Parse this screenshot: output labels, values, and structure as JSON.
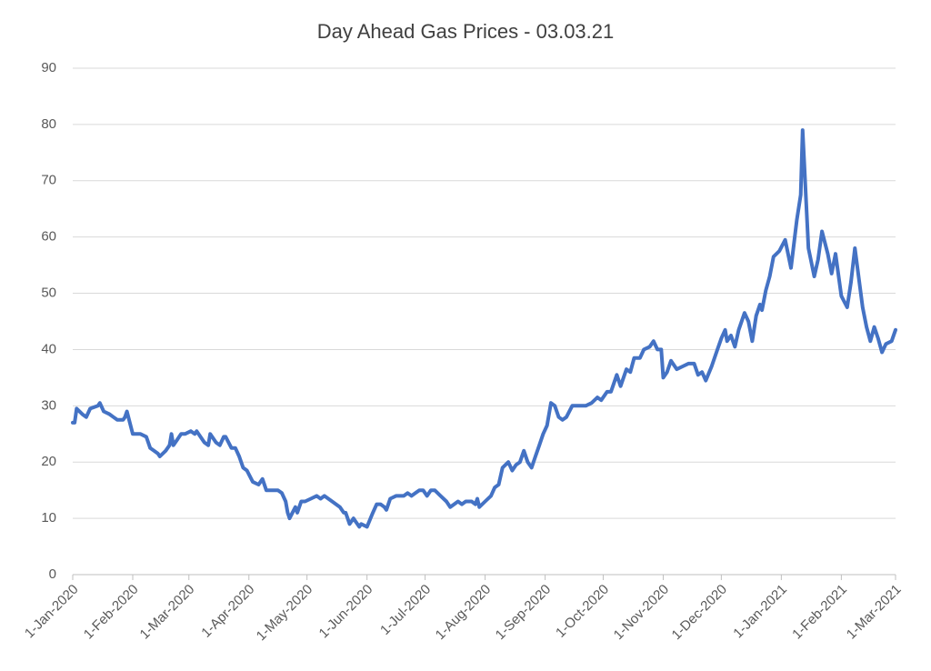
{
  "chart_data": {
    "type": "line",
    "title": "Day Ahead Gas Prices - 03.03.21",
    "x": [
      "2020-01-01",
      "2020-01-02",
      "2020-01-03",
      "2020-01-06",
      "2020-01-08",
      "2020-01-10",
      "2020-01-14",
      "2020-01-15",
      "2020-01-17",
      "2020-01-20",
      "2020-01-22",
      "2020-01-24",
      "2020-01-27",
      "2020-01-28",
      "2020-01-29",
      "2020-02-01",
      "2020-02-03",
      "2020-02-05",
      "2020-02-08",
      "2020-02-10",
      "2020-02-12",
      "2020-02-14",
      "2020-02-15",
      "2020-02-18",
      "2020-02-20",
      "2020-02-21",
      "2020-02-22",
      "2020-02-24",
      "2020-02-26",
      "2020-02-28",
      "2020-03-02",
      "2020-03-04",
      "2020-03-05",
      "2020-03-09",
      "2020-03-11",
      "2020-03-12",
      "2020-03-15",
      "2020-03-17",
      "2020-03-19",
      "2020-03-20",
      "2020-03-23",
      "2020-03-25",
      "2020-03-27",
      "2020-03-29",
      "2020-03-31",
      "2020-04-03",
      "2020-04-06",
      "2020-04-08",
      "2020-04-10",
      "2020-04-14",
      "2020-04-16",
      "2020-04-18",
      "2020-04-20",
      "2020-04-21",
      "2020-04-22",
      "2020-04-25",
      "2020-04-26",
      "2020-04-28",
      "2020-04-30",
      "2020-05-03",
      "2020-05-06",
      "2020-05-08",
      "2020-05-10",
      "2020-05-12",
      "2020-05-14",
      "2020-05-16",
      "2020-05-18",
      "2020-05-20",
      "2020-05-21",
      "2020-05-23",
      "2020-05-25",
      "2020-05-26",
      "2020-05-28",
      "2020-05-29",
      "2020-06-01",
      "2020-06-04",
      "2020-06-06",
      "2020-06-08",
      "2020-06-10",
      "2020-06-11",
      "2020-06-13",
      "2020-06-16",
      "2020-06-18",
      "2020-06-20",
      "2020-06-22",
      "2020-06-24",
      "2020-06-26",
      "2020-06-28",
      "2020-06-30",
      "2020-07-02",
      "2020-07-04",
      "2020-07-06",
      "2020-07-09",
      "2020-07-12",
      "2020-07-14",
      "2020-07-16",
      "2020-07-18",
      "2020-07-20",
      "2020-07-22",
      "2020-07-25",
      "2020-07-27",
      "2020-07-28",
      "2020-07-29",
      "2020-08-01",
      "2020-08-04",
      "2020-08-06",
      "2020-08-08",
      "2020-08-10",
      "2020-08-13",
      "2020-08-15",
      "2020-08-17",
      "2020-08-19",
      "2020-08-21",
      "2020-08-23",
      "2020-08-25",
      "2020-08-27",
      "2020-08-29",
      "2020-08-31",
      "2020-09-02",
      "2020-09-04",
      "2020-09-06",
      "2020-09-08",
      "2020-09-10",
      "2020-09-12",
      "2020-09-15",
      "2020-09-18",
      "2020-09-22",
      "2020-09-25",
      "2020-09-28",
      "2020-09-30",
      "2020-10-03",
      "2020-10-05",
      "2020-10-08",
      "2020-10-10",
      "2020-10-13",
      "2020-10-15",
      "2020-10-17",
      "2020-10-20",
      "2020-10-22",
      "2020-10-25",
      "2020-10-27",
      "2020-10-29",
      "2020-10-31",
      "2020-11-01",
      "2020-11-03",
      "2020-11-05",
      "2020-11-08",
      "2020-11-11",
      "2020-11-14",
      "2020-11-17",
      "2020-11-19",
      "2020-11-21",
      "2020-11-23",
      "2020-11-26",
      "2020-11-29",
      "2020-12-01",
      "2020-12-03",
      "2020-12-04",
      "2020-12-06",
      "2020-12-08",
      "2020-12-10",
      "2020-12-13",
      "2020-12-15",
      "2020-12-17",
      "2020-12-19",
      "2020-12-21",
      "2020-12-22",
      "2020-12-24",
      "2020-12-26",
      "2020-12-28",
      "2020-12-31",
      "2021-01-03",
      "2021-01-06",
      "2021-01-09",
      "2021-01-11",
      "2021-01-12",
      "2021-01-15",
      "2021-01-18",
      "2021-01-20",
      "2021-01-22",
      "2021-01-25",
      "2021-01-27",
      "2021-01-29",
      "2021-02-01",
      "2021-02-04",
      "2021-02-06",
      "2021-02-08",
      "2021-02-12",
      "2021-02-14",
      "2021-02-16",
      "2021-02-18",
      "2021-02-20",
      "2021-02-22",
      "2021-02-24",
      "2021-02-27",
      "2021-03-01"
    ],
    "series": [
      {
        "color": "#4472c4",
        "values": [
          27,
          27,
          29.5,
          28.5,
          28,
          29.5,
          30,
          30.5,
          29,
          28.5,
          28,
          27.5,
          27.5,
          28,
          29,
          25,
          25,
          25,
          24.5,
          22.5,
          22,
          21.5,
          21,
          22,
          23,
          25,
          23,
          24,
          25,
          25,
          25.5,
          25,
          25.5,
          23.5,
          23,
          25,
          23.5,
          23,
          24.5,
          24.5,
          22.5,
          22.5,
          21,
          19,
          18.5,
          16.5,
          16,
          17,
          15,
          15,
          15,
          14.5,
          13,
          11,
          10,
          12,
          11,
          13,
          13,
          13.5,
          14,
          13.5,
          14,
          13.5,
          13,
          12.5,
          12,
          11,
          11,
          9,
          10,
          9.5,
          8.5,
          9,
          8.5,
          11,
          12.5,
          12.5,
          12,
          11.5,
          13.5,
          14,
          14,
          14,
          14.5,
          14,
          14.5,
          15,
          15,
          14,
          15,
          15,
          14,
          13,
          12,
          12.5,
          13,
          12.5,
          13,
          13,
          12.5,
          13.5,
          12,
          13,
          14,
          15.5,
          16,
          19,
          20,
          18.5,
          19.5,
          20,
          22,
          20,
          19,
          21,
          23,
          25,
          26.5,
          30.5,
          30,
          28,
          27.5,
          28,
          30,
          30,
          30,
          30.5,
          31.5,
          31,
          32.5,
          32.5,
          35.5,
          33.5,
          36.5,
          36,
          38.5,
          38.5,
          40,
          40.5,
          41.5,
          40,
          40,
          35,
          36,
          38,
          36.5,
          37,
          37.5,
          37.5,
          35.5,
          36,
          34.5,
          37,
          40,
          42,
          43.5,
          41.5,
          42.5,
          40.5,
          43.5,
          46.5,
          45,
          41.5,
          46,
          48,
          47,
          50.5,
          53,
          56.5,
          57.5,
          59.5,
          54.5,
          63,
          67.5,
          79,
          58,
          53,
          56,
          61,
          57,
          53.5,
          57,
          49.5,
          47.5,
          52,
          58,
          47.5,
          44,
          41.5,
          44,
          42,
          39.5,
          41,
          41.5,
          43.5
        ]
      }
    ],
    "xlim": [
      "2020-01-01",
      "2021-03-01"
    ],
    "xticks": [
      {
        "value": "2020-01-01",
        "label": "1-Jan-2020"
      },
      {
        "value": "2020-02-01",
        "label": "1-Feb-2020"
      },
      {
        "value": "2020-03-01",
        "label": "1-Mar-2020"
      },
      {
        "value": "2020-04-01",
        "label": "1-Apr-2020"
      },
      {
        "value": "2020-05-01",
        "label": "1-May-2020"
      },
      {
        "value": "2020-06-01",
        "label": "1-Jun-2020"
      },
      {
        "value": "2020-07-01",
        "label": "1-Jul-2020"
      },
      {
        "value": "2020-08-01",
        "label": "1-Aug-2020"
      },
      {
        "value": "2020-09-01",
        "label": "1-Sep-2020"
      },
      {
        "value": "2020-10-01",
        "label": "1-Oct-2020"
      },
      {
        "value": "2020-11-01",
        "label": "1-Nov-2020"
      },
      {
        "value": "2020-12-01",
        "label": "1-Dec-2020"
      },
      {
        "value": "2021-01-01",
        "label": "1-Jan-2021"
      },
      {
        "value": "2021-02-01",
        "label": "1-Feb-2021"
      },
      {
        "value": "2021-03-01",
        "label": "1-Mar-2021"
      }
    ],
    "ylim": [
      0,
      90
    ],
    "yticks": [
      0,
      10,
      20,
      30,
      40,
      50,
      60,
      70,
      80,
      90
    ],
    "grid": true
  }
}
